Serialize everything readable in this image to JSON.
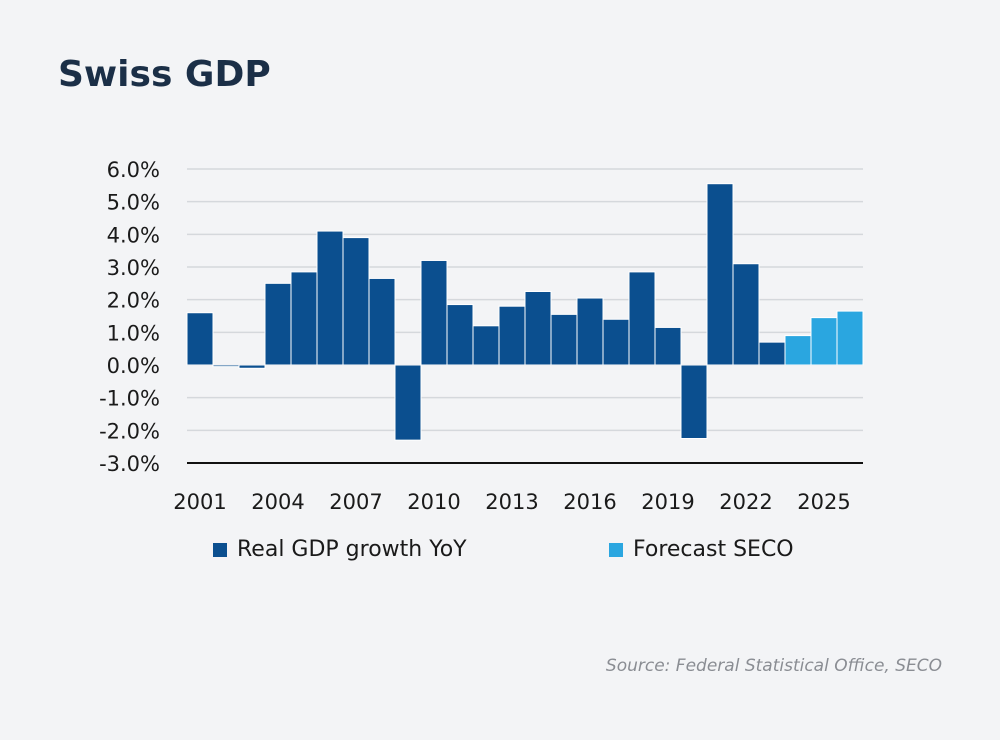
{
  "title": "Swiss GDP",
  "source": "Source: Federal Statistical Office, SECO",
  "legend": [
    {
      "label": "Real GDP growth YoY",
      "color": "#0b4f8f"
    },
    {
      "label": "Forecast SECO",
      "color": "#2aa6e0"
    }
  ],
  "chart_data": {
    "type": "bar",
    "title": "Swiss GDP",
    "categories": [
      "2001",
      "2002",
      "2003",
      "2004",
      "2005",
      "2006",
      "2007",
      "2008",
      "2009",
      "2010",
      "2011",
      "2012",
      "2013",
      "2014",
      "2015",
      "2016",
      "2017",
      "2018",
      "2019",
      "2020",
      "2021",
      "2022",
      "2023",
      "2024",
      "2025",
      "2026"
    ],
    "series": [
      {
        "name": "Real GDP growth YoY",
        "color": "#0b4f8f",
        "values": [
          1.6,
          -0.05,
          -0.1,
          2.5,
          2.85,
          4.1,
          3.9,
          2.65,
          -2.3,
          3.2,
          1.85,
          1.2,
          1.8,
          2.25,
          1.55,
          2.05,
          1.4,
          2.85,
          1.15,
          -2.25,
          5.55,
          3.1,
          0.7,
          null,
          null,
          null
        ]
      },
      {
        "name": "Forecast SECO",
        "color": "#2aa6e0",
        "values": [
          null,
          null,
          null,
          null,
          null,
          null,
          null,
          null,
          null,
          null,
          null,
          null,
          null,
          null,
          null,
          null,
          null,
          null,
          null,
          null,
          null,
          null,
          null,
          0.9,
          1.45,
          1.65
        ]
      }
    ],
    "ylim": [
      -3,
      6
    ],
    "yticks": [
      "6.0%",
      "5.0%",
      "4.0%",
      "3.0%",
      "2.0%",
      "1.0%",
      "0.0%",
      "-1.0%",
      "-2.0%",
      "-3.0%"
    ],
    "ytick_values": [
      6,
      5,
      4,
      3,
      2,
      1,
      0,
      -1,
      -2,
      -3
    ],
    "xticks": [
      "2001",
      "2004",
      "2007",
      "2010",
      "2013",
      "2016",
      "2019",
      "2022",
      "2025"
    ],
    "grid": true,
    "legend_position": "bottom"
  }
}
